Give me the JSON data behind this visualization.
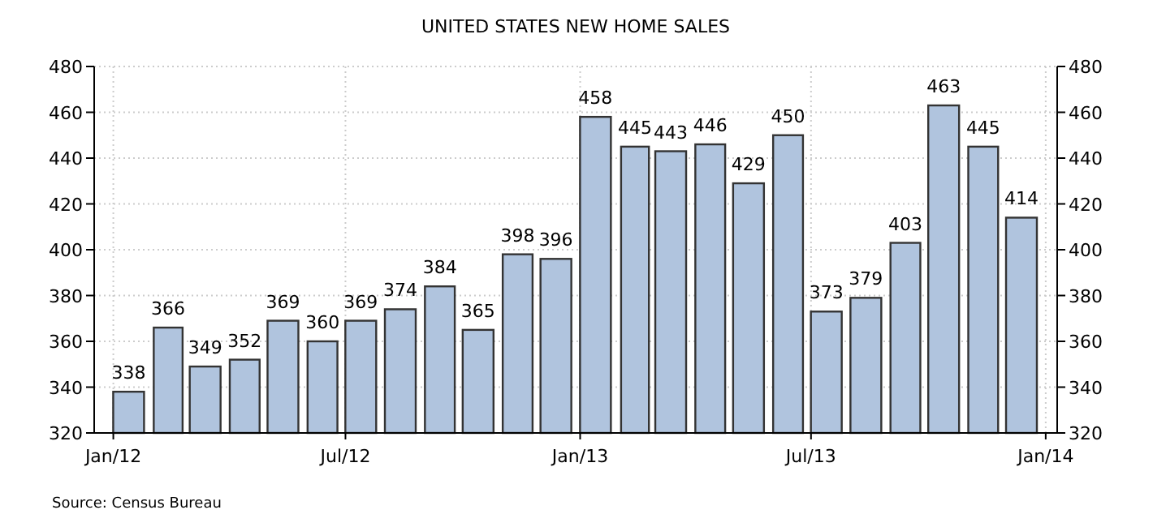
{
  "chart_data": {
    "type": "bar",
    "title": "UNITED STATES NEW HOME SALES",
    "x": [
      "2012-01-13",
      "2012-02-13",
      "2012-03-13",
      "2012-04-13",
      "2012-05-13",
      "2012-06-13",
      "2012-07-13",
      "2012-08-13",
      "2012-09-13",
      "2012-10-13",
      "2012-11-13",
      "2012-12-13",
      "2013-01-13",
      "2013-02-13",
      "2013-03-13",
      "2013-04-13",
      "2013-05-13",
      "2013-06-13",
      "2013-07-13",
      "2013-08-13",
      "2013-09-13",
      "2013-10-13",
      "2013-11-13",
      "2013-12-13"
    ],
    "values": [
      338,
      366,
      349,
      352,
      369,
      360,
      369,
      374,
      384,
      365,
      398,
      396,
      458,
      445,
      443,
      446,
      429,
      450,
      373,
      379,
      403,
      463,
      445,
      414
    ],
    "color": "#b0c4de",
    "data_labels": true,
    "xlim": [
      "2011-12-17",
      "2014-01-10"
    ],
    "xticks": [
      {
        "value": "2012-01",
        "label": "Jan/12"
      },
      {
        "value": "2012-07",
        "label": "Jul/12"
      },
      {
        "value": "2013-01",
        "label": "Jan/13"
      },
      {
        "value": "2013-07",
        "label": "Jul/13"
      },
      {
        "value": "2014-01",
        "label": "Jan/14"
      }
    ],
    "ylim": [
      320,
      480
    ],
    "yticks": [
      320,
      340,
      360,
      380,
      400,
      420,
      440,
      460,
      480
    ],
    "y2lim": [
      320,
      480
    ],
    "y2ticks": [
      320,
      340,
      360,
      380,
      400,
      420,
      440,
      460,
      480
    ],
    "grid": true,
    "annotations": [
      "Source: Census Bureau"
    ]
  }
}
